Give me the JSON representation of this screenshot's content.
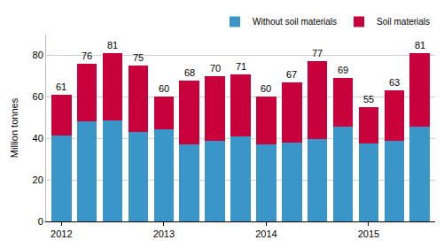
{
  "chart_data": {
    "type": "bar",
    "stacked": true,
    "y_label": "Million tonnes",
    "categories": [
      "2012",
      null,
      null,
      null,
      "2013",
      null,
      null,
      null,
      "2014",
      null,
      null,
      null,
      "2015",
      null,
      null
    ],
    "series": [
      {
        "name": "Without soil materials",
        "color": "#3a96c8",
        "values": [
          41.5,
          48,
          48.5,
          43,
          44.5,
          37,
          39,
          41,
          37,
          38,
          39.5,
          45.5,
          37.5,
          39,
          45.5
        ]
      },
      {
        "name": "Soil materials",
        "color": "#c8003c",
        "values": [
          19.5,
          28,
          32.5,
          32,
          15.5,
          31,
          31,
          30,
          23,
          29,
          37.5,
          23.5,
          17.5,
          24,
          35.5
        ]
      }
    ],
    "totals": [
      61,
      76,
      81,
      75,
      60,
      68,
      70,
      71,
      60,
      67,
      77,
      69,
      55,
      63,
      81
    ],
    "data_labels": true,
    "ylim": [
      0,
      90
    ],
    "yticks": [
      0,
      20,
      40,
      60,
      80
    ],
    "grid": true,
    "legend": "top-right"
  }
}
